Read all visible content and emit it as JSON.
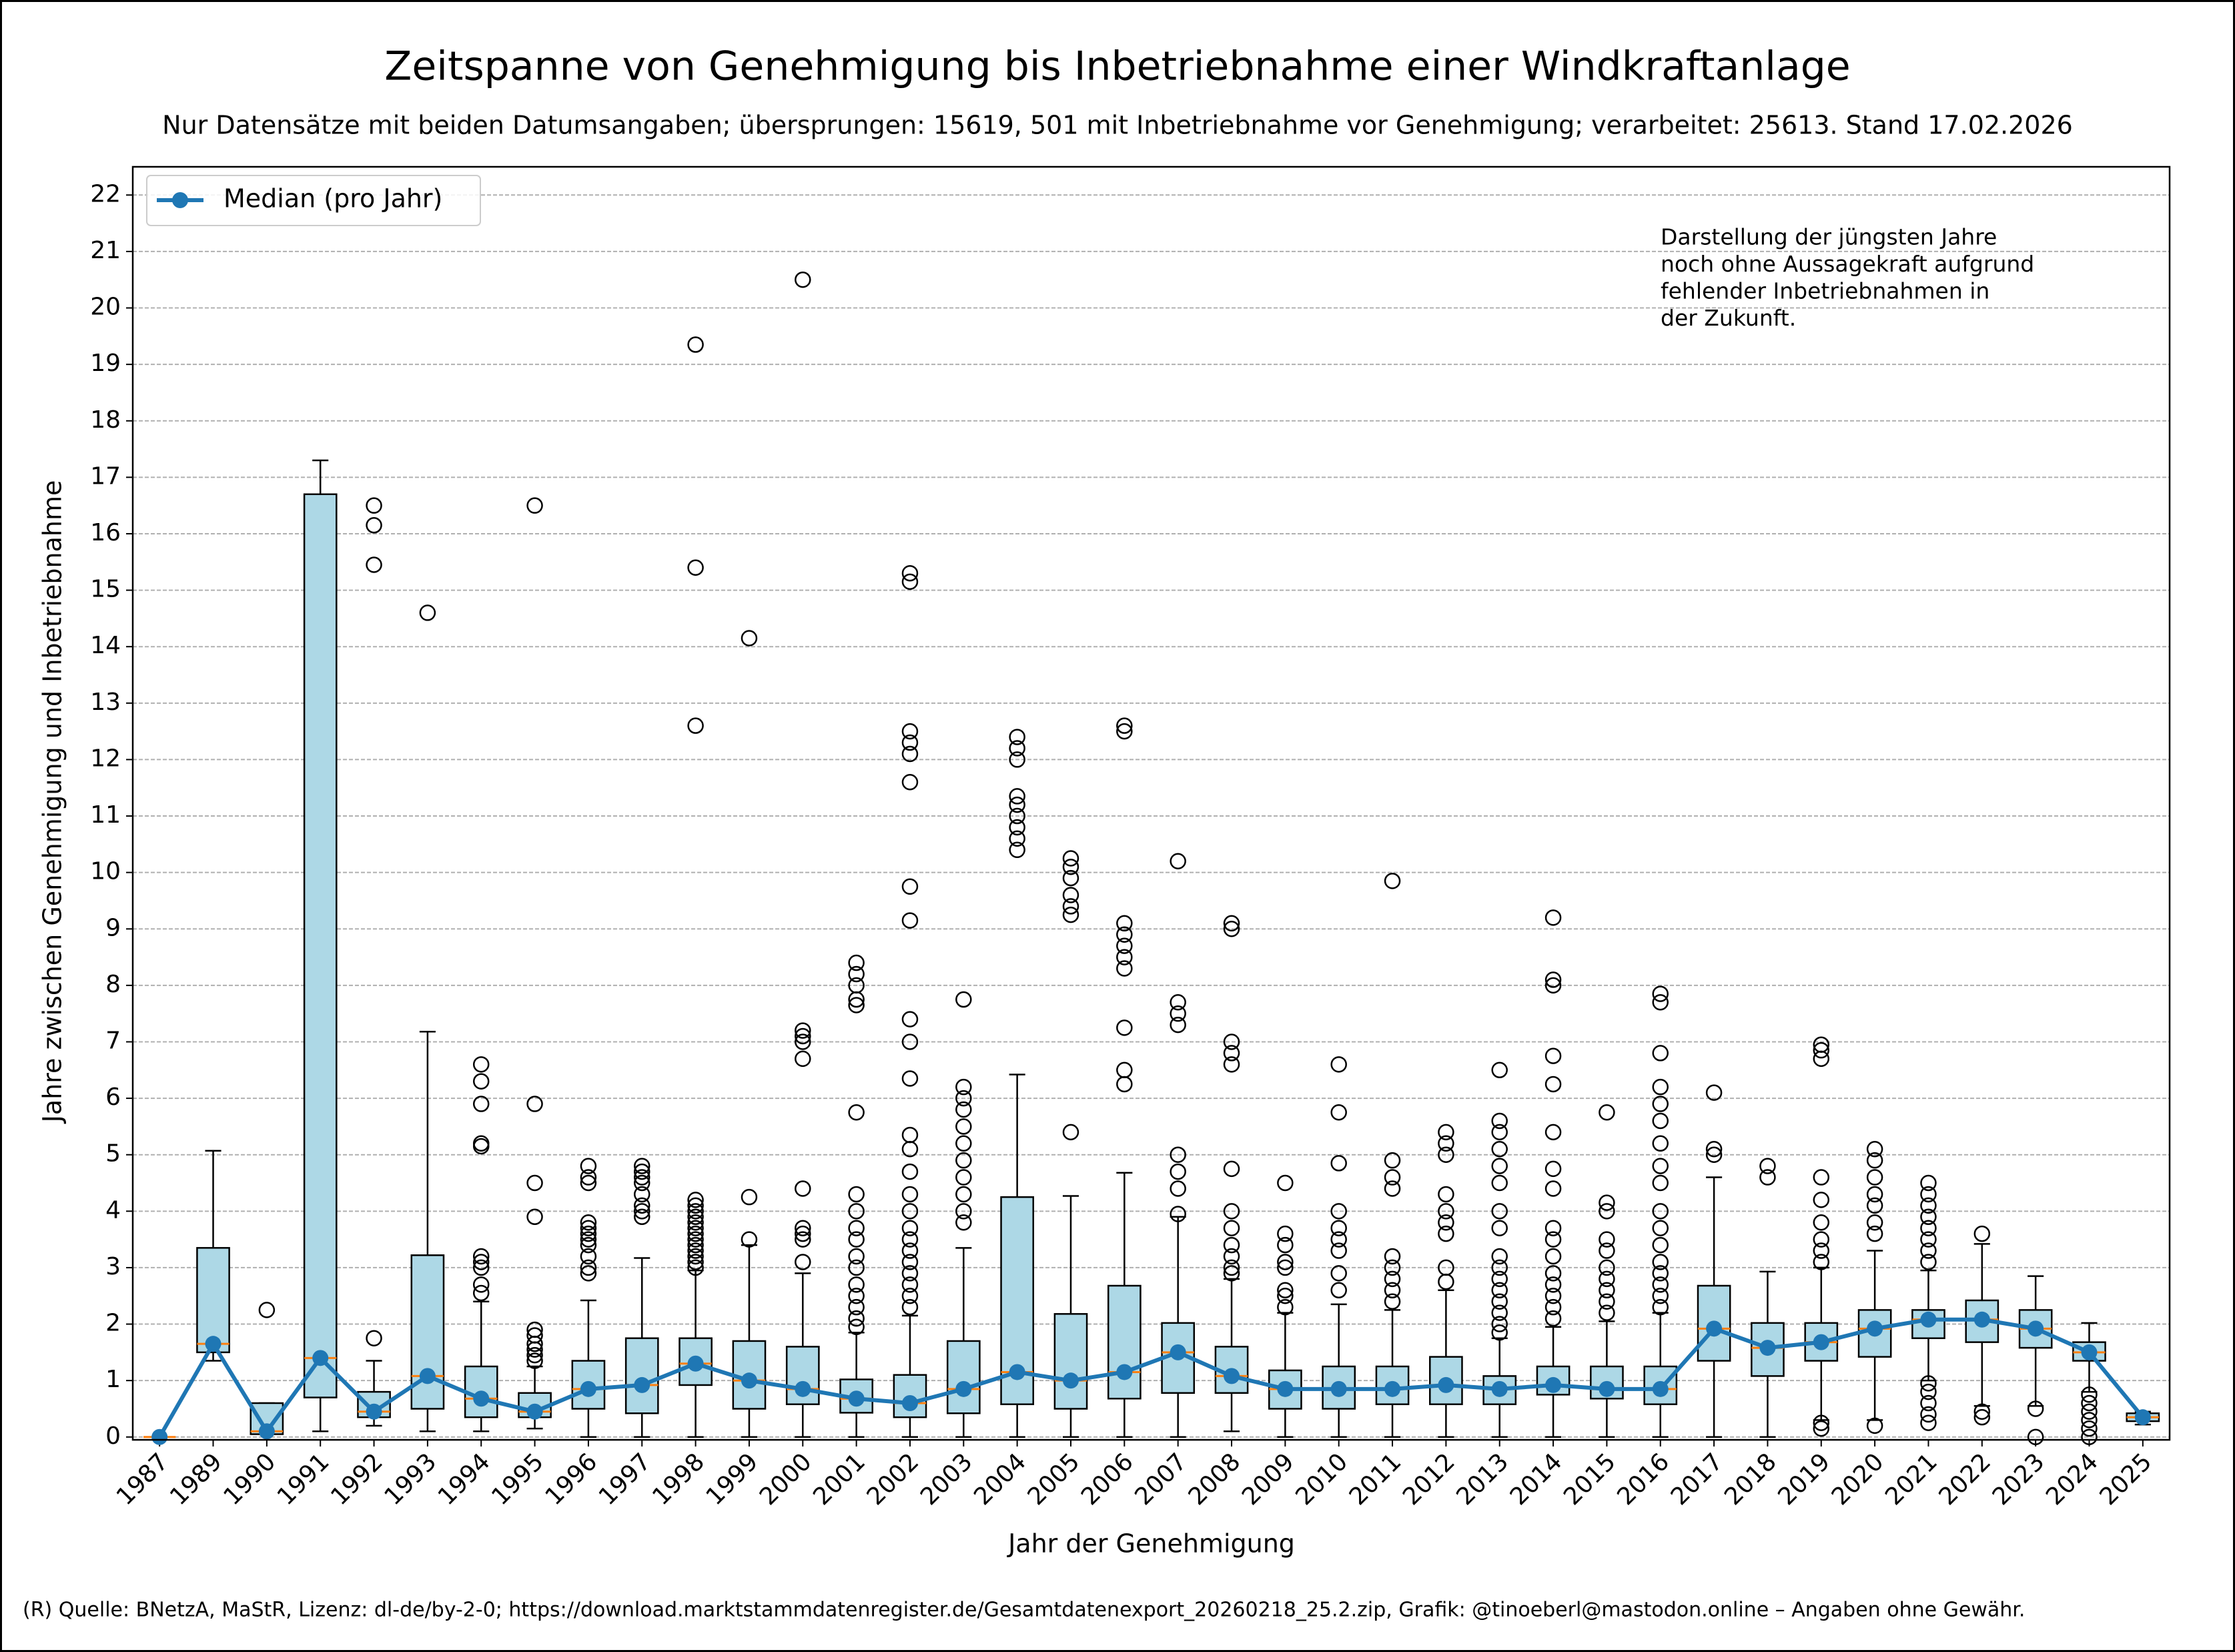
{
  "chart_data": {
    "type": "box",
    "title": "Zeitspanne von Genehmigung bis Inbetriebnahme einer Windkraftanlage",
    "subtitle": "Nur Datensätze mit beiden Datumsangaben; übersprungen: 15619, 501 mit Inbetriebnahme vor Genehmigung; verarbeitet: 25613. Stand 17.02.2026",
    "x_label": "Jahr der Genehmigung",
    "y_label": "Jahre zwischen Genehmigung und Inbetriebnahme",
    "annotation": [
      "Darstellung der jüngsten Jahre",
      "noch ohne Aussagekraft aufgrund",
      "fehlender Inbetriebnahmen in",
      "der Zukunft."
    ],
    "footer": "(R) Quelle: BNetzA, MaStR, Lizenz: dl-de/by-2-0; https://download.marktstammdatenregister.de/Gesamtdatenexport_20260218_25.2.zip, Grafik: @tinoeberl@mastodon.online – Angaben ohne Gewähr.",
    "categories": [
      "1987",
      "1989",
      "1990",
      "1991",
      "1992",
      "1993",
      "1994",
      "1995",
      "1996",
      "1997",
      "1998",
      "1999",
      "2000",
      "2001",
      "2002",
      "2003",
      "2004",
      "2005",
      "2006",
      "2007",
      "2008",
      "2009",
      "2010",
      "2011",
      "2012",
      "2013",
      "2014",
      "2015",
      "2016",
      "2017",
      "2018",
      "2019",
      "2020",
      "2021",
      "2022",
      "2023",
      "2024",
      "2025"
    ],
    "box_color": "#add8e6",
    "median_color": "#ff7f0e",
    "boxes": [
      {
        "whislo": 0,
        "q1": 0,
        "med": 0,
        "q3": 0,
        "whishi": 0,
        "fliers": []
      },
      {
        "whislo": 1.35,
        "q1": 1.5,
        "med": 1.65,
        "q3": 3.35,
        "whishi": 5.07,
        "fliers": []
      },
      {
        "whislo": 0.05,
        "q1": 0.05,
        "med": 0.1,
        "q3": 0.6,
        "whishi": 0.6,
        "fliers": [
          2.25
        ]
      },
      {
        "whislo": 0.1,
        "q1": 0.7,
        "med": 1.4,
        "q3": 16.7,
        "whishi": 17.3,
        "fliers": []
      },
      {
        "whislo": 0.2,
        "q1": 0.35,
        "med": 0.45,
        "q3": 0.8,
        "whishi": 1.35,
        "fliers": [
          1.75,
          15.45,
          16.15,
          16.5
        ]
      },
      {
        "whislo": 0.1,
        "q1": 0.5,
        "med": 1.08,
        "q3": 3.22,
        "whishi": 7.18,
        "fliers": [
          14.6
        ]
      },
      {
        "whislo": 0.1,
        "q1": 0.35,
        "med": 0.68,
        "q3": 1.25,
        "whishi": 2.4,
        "fliers": [
          2.55,
          2.7,
          3.0,
          3.1,
          3.2,
          5.15,
          5.2,
          5.9,
          6.3,
          6.6
        ]
      },
      {
        "whislo": 0.15,
        "q1": 0.35,
        "med": 0.45,
        "q3": 0.78,
        "whishi": 1.25,
        "fliers": [
          1.35,
          1.45,
          1.55,
          1.65,
          1.8,
          1.9,
          3.9,
          4.5,
          5.9,
          16.5
        ]
      },
      {
        "whislo": 0,
        "q1": 0.5,
        "med": 0.85,
        "q3": 1.35,
        "whishi": 2.42,
        "fliers": [
          2.9,
          3.0,
          3.2,
          3.4,
          3.5,
          3.6,
          3.7,
          3.8,
          4.5,
          4.6,
          4.8
        ]
      },
      {
        "whislo": 0,
        "q1": 0.42,
        "med": 0.92,
        "q3": 1.75,
        "whishi": 3.17,
        "fliers": [
          3.9,
          4.0,
          4.1,
          4.3,
          4.5,
          4.6,
          4.7,
          4.8
        ]
      },
      {
        "whislo": 0,
        "q1": 0.92,
        "med": 1.3,
        "q3": 1.75,
        "whishi": 2.95,
        "fliers": [
          3.0,
          3.1,
          3.2,
          3.3,
          3.4,
          3.5,
          3.6,
          3.7,
          3.8,
          3.9,
          4.0,
          4.1,
          4.2,
          12.6,
          15.4,
          19.35
        ]
      },
      {
        "whislo": 0,
        "q1": 0.5,
        "med": 1.0,
        "q3": 1.7,
        "whishi": 3.4,
        "fliers": [
          3.5,
          4.25,
          14.15
        ]
      },
      {
        "whislo": 0,
        "q1": 0.58,
        "med": 0.85,
        "q3": 1.6,
        "whishi": 2.9,
        "fliers": [
          3.1,
          3.5,
          3.6,
          3.7,
          4.4,
          6.7,
          7.0,
          7.1,
          7.2,
          20.5
        ]
      },
      {
        "whislo": 0,
        "q1": 0.43,
        "med": 0.68,
        "q3": 1.02,
        "whishi": 1.85,
        "fliers": [
          1.95,
          2.1,
          2.3,
          2.5,
          2.7,
          3.0,
          3.2,
          3.5,
          3.7,
          4.0,
          4.3,
          5.75,
          7.65,
          7.75,
          8.0,
          8.2,
          8.4
        ]
      },
      {
        "whislo": 0,
        "q1": 0.35,
        "med": 0.6,
        "q3": 1.1,
        "whishi": 2.15,
        "fliers": [
          2.3,
          2.5,
          2.7,
          2.9,
          3.1,
          3.3,
          3.5,
          3.7,
          4.0,
          4.3,
          4.7,
          5.1,
          5.35,
          6.35,
          7.0,
          7.4,
          9.15,
          9.75,
          11.6,
          12.1,
          12.3,
          12.5,
          15.15,
          15.3
        ]
      },
      {
        "whislo": 0,
        "q1": 0.42,
        "med": 0.85,
        "q3": 1.7,
        "whishi": 3.35,
        "fliers": [
          3.8,
          4.0,
          4.3,
          4.6,
          4.9,
          5.2,
          5.5,
          5.8,
          6.0,
          6.2,
          7.75
        ]
      },
      {
        "whislo": 0,
        "q1": 0.58,
        "med": 1.15,
        "q3": 4.25,
        "whishi": 6.42,
        "fliers": [
          10.4,
          10.6,
          10.8,
          11.0,
          11.2,
          11.35,
          12.0,
          12.2,
          12.4
        ]
      },
      {
        "whislo": 0,
        "q1": 0.5,
        "med": 1.0,
        "q3": 2.18,
        "whishi": 4.27,
        "fliers": [
          5.4,
          9.25,
          9.4,
          9.6,
          9.9,
          10.1,
          10.25
        ]
      },
      {
        "whislo": 0,
        "q1": 0.68,
        "med": 1.15,
        "q3": 2.68,
        "whishi": 4.68,
        "fliers": [
          6.25,
          6.5,
          7.25,
          8.3,
          8.5,
          8.7,
          8.9,
          9.1,
          12.5,
          12.6
        ]
      },
      {
        "whislo": 0,
        "q1": 0.78,
        "med": 1.5,
        "q3": 2.02,
        "whishi": 3.9,
        "fliers": [
          3.95,
          4.4,
          4.7,
          5.0,
          7.3,
          7.5,
          7.7,
          10.2
        ]
      },
      {
        "whislo": 0.1,
        "q1": 0.78,
        "med": 1.08,
        "q3": 1.6,
        "whishi": 2.8,
        "fliers": [
          2.9,
          3.0,
          3.2,
          3.4,
          3.7,
          4.0,
          4.75,
          6.6,
          6.8,
          7.0,
          9.0,
          9.1
        ]
      },
      {
        "whislo": 0,
        "q1": 0.5,
        "med": 0.85,
        "q3": 1.18,
        "whishi": 2.2,
        "fliers": [
          2.3,
          2.5,
          2.6,
          3.0,
          3.1,
          3.4,
          3.6,
          4.5
        ]
      },
      {
        "whislo": 0,
        "q1": 0.5,
        "med": 0.85,
        "q3": 1.25,
        "whishi": 2.35,
        "fliers": [
          2.6,
          2.9,
          3.3,
          3.5,
          3.7,
          4.0,
          4.85,
          5.75,
          6.6
        ]
      },
      {
        "whislo": 0,
        "q1": 0.58,
        "med": 0.85,
        "q3": 1.25,
        "whishi": 2.25,
        "fliers": [
          2.4,
          2.6,
          2.8,
          3.0,
          3.2,
          4.4,
          4.6,
          4.9,
          9.85
        ]
      },
      {
        "whislo": 0,
        "q1": 0.58,
        "med": 0.92,
        "q3": 1.42,
        "whishi": 2.6,
        "fliers": [
          2.75,
          3.0,
          3.6,
          3.8,
          4.0,
          4.3,
          5.0,
          5.2,
          5.4
        ]
      },
      {
        "whislo": 0,
        "q1": 0.58,
        "med": 0.85,
        "q3": 1.08,
        "whishi": 1.75,
        "fliers": [
          1.85,
          2.0,
          2.2,
          2.4,
          2.6,
          2.8,
          3.0,
          3.2,
          3.7,
          4.0,
          4.5,
          4.8,
          5.1,
          5.4,
          5.6,
          6.5
        ]
      },
      {
        "whislo": 0,
        "q1": 0.75,
        "med": 0.92,
        "q3": 1.25,
        "whishi": 1.95,
        "fliers": [
          2.1,
          2.3,
          2.5,
          2.7,
          2.9,
          3.2,
          3.5,
          3.7,
          4.4,
          4.75,
          5.4,
          6.25,
          6.75,
          8.0,
          8.1,
          9.2
        ]
      },
      {
        "whislo": 0,
        "q1": 0.68,
        "med": 0.85,
        "q3": 1.25,
        "whishi": 2.05,
        "fliers": [
          2.2,
          2.4,
          2.6,
          2.8,
          3.0,
          3.3,
          3.5,
          4.0,
          4.15,
          5.75
        ]
      },
      {
        "whislo": 0,
        "q1": 0.58,
        "med": 0.85,
        "q3": 1.25,
        "whishi": 2.2,
        "fliers": [
          2.3,
          2.5,
          2.7,
          2.9,
          3.1,
          3.4,
          3.7,
          4.0,
          4.5,
          4.8,
          5.2,
          5.6,
          5.9,
          6.2,
          6.8,
          7.7,
          7.85
        ]
      },
      {
        "whislo": 0,
        "q1": 1.35,
        "med": 1.92,
        "q3": 2.68,
        "whishi": 4.6,
        "fliers": [
          5.0,
          5.1,
          6.1
        ]
      },
      {
        "whislo": 0,
        "q1": 1.08,
        "med": 1.58,
        "q3": 2.02,
        "whishi": 2.93,
        "fliers": [
          4.6,
          4.8
        ]
      },
      {
        "whislo": 0.3,
        "q1": 1.35,
        "med": 1.68,
        "q3": 2.02,
        "whishi": 3.0,
        "fliers": [
          0.15,
          0.25,
          3.1,
          3.3,
          3.5,
          3.8,
          4.2,
          4.6,
          6.7,
          6.85,
          6.95
        ]
      },
      {
        "whislo": 0.3,
        "q1": 1.42,
        "med": 1.92,
        "q3": 2.25,
        "whishi": 3.3,
        "fliers": [
          0.2,
          3.6,
          3.8,
          4.1,
          4.3,
          4.6,
          4.9,
          5.1
        ]
      },
      {
        "whislo": 1.0,
        "q1": 1.75,
        "med": 2.08,
        "q3": 2.25,
        "whishi": 2.95,
        "fliers": [
          0.25,
          0.4,
          0.6,
          0.8,
          0.95,
          3.1,
          3.3,
          3.5,
          3.7,
          3.9,
          4.1,
          4.3,
          4.5
        ]
      },
      {
        "whislo": 0.55,
        "q1": 1.68,
        "med": 2.08,
        "q3": 2.42,
        "whishi": 3.42,
        "fliers": [
          0.35,
          0.45,
          3.6
        ]
      },
      {
        "whislo": 0.55,
        "q1": 1.58,
        "med": 1.92,
        "q3": 2.25,
        "whishi": 2.85,
        "fliers": [
          0.0,
          0.5
        ]
      },
      {
        "whislo": 0.8,
        "q1": 1.35,
        "med": 1.5,
        "q3": 1.68,
        "whishi": 2.02,
        "fliers": [
          0.0,
          0.15,
          0.3,
          0.45,
          0.6,
          0.75
        ]
      },
      {
        "whislo": 0.22,
        "q1": 0.28,
        "med": 0.35,
        "q3": 0.42,
        "whishi": 0.45,
        "fliers": []
      }
    ],
    "series": [
      {
        "name": "Median (pro Jahr)",
        "color": "#1f77b4",
        "values": [
          0,
          1.65,
          0.1,
          1.4,
          0.45,
          1.08,
          0.68,
          0.45,
          0.85,
          0.92,
          1.3,
          1.0,
          0.85,
          0.68,
          0.6,
          0.85,
          1.15,
          1.0,
          1.15,
          1.5,
          1.08,
          0.85,
          0.85,
          0.85,
          0.92,
          0.85,
          0.92,
          0.85,
          0.85,
          1.92,
          1.58,
          1.68,
          1.92,
          2.08,
          2.08,
          1.92,
          1.5,
          0.35
        ]
      }
    ],
    "ylim": [
      -0.05,
      22.5
    ],
    "yticks": [
      0,
      1,
      2,
      3,
      4,
      5,
      6,
      7,
      8,
      9,
      10,
      11,
      12,
      13,
      14,
      15,
      16,
      17,
      18,
      19,
      20,
      21,
      22
    ],
    "grid": true,
    "legend": "upper left"
  }
}
